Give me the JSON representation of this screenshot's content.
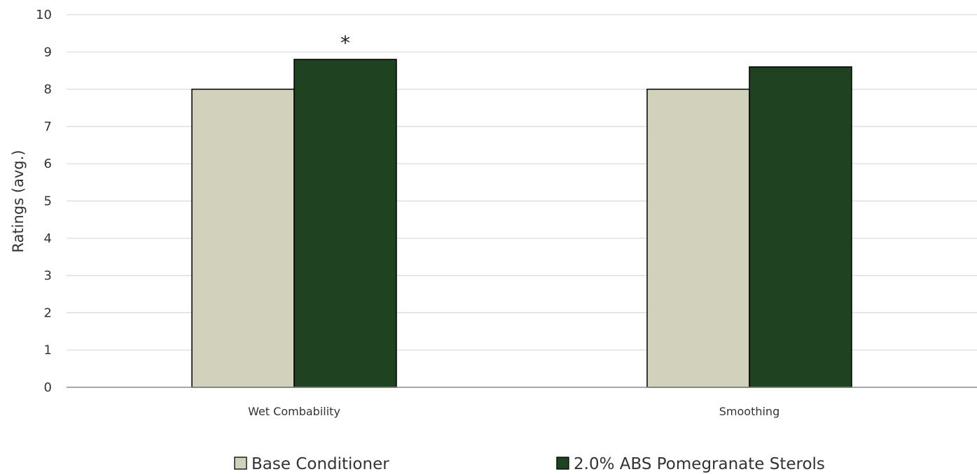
{
  "chart_data": {
    "type": "bar",
    "categories": [
      "Wet Combability",
      "Smoothing"
    ],
    "series": [
      {
        "name": "Base Conditioner",
        "values": [
          8.0,
          8.0
        ],
        "color": "#d2d1bc"
      },
      {
        "name": "2.0% ABS Pomegranate Sterols",
        "values": [
          8.8,
          8.6
        ],
        "color": "#1f4321"
      }
    ],
    "title": "",
    "xlabel": "",
    "ylabel": "Ratings (avg.)",
    "ylim": [
      0,
      10
    ],
    "yticks": [
      0,
      1,
      2,
      3,
      4,
      5,
      6,
      7,
      8,
      9,
      10
    ],
    "grid": true,
    "legend_position": "bottom",
    "annotations": [
      {
        "text": "*",
        "category": "Wet Combability",
        "series": "2.0% ABS Pomegranate Sterols"
      }
    ]
  }
}
